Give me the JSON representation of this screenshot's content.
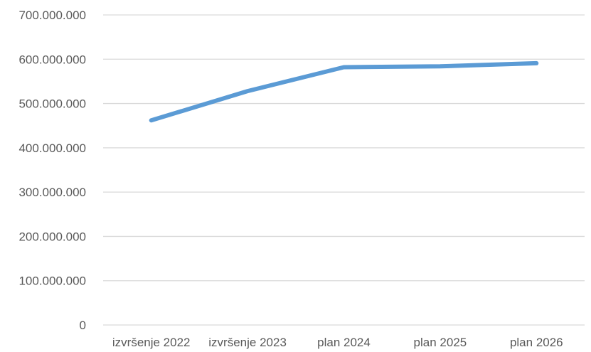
{
  "chart_data": {
    "type": "line",
    "title": "",
    "xlabel": "",
    "ylabel": "",
    "categories": [
      "izvršenje 2022",
      "izvršenje 2023",
      "plan 2024",
      "plan 2025",
      "plan 2026"
    ],
    "series": [
      {
        "values": [
          462000000,
          528000000,
          582000000,
          584000000,
          591000000
        ],
        "color": "#5b9bd5"
      }
    ],
    "ylim": [
      0,
      700000000
    ],
    "yticks": [
      0,
      100000000,
      200000000,
      300000000,
      400000000,
      500000000,
      600000000,
      700000000
    ],
    "ytick_labels": [
      "0",
      "100.000.000",
      "200.000.000",
      "300.000.000",
      "400.000.000",
      "500.000.000",
      "600.000.000",
      "700.000.000"
    ],
    "grid": true,
    "legend": "none"
  }
}
